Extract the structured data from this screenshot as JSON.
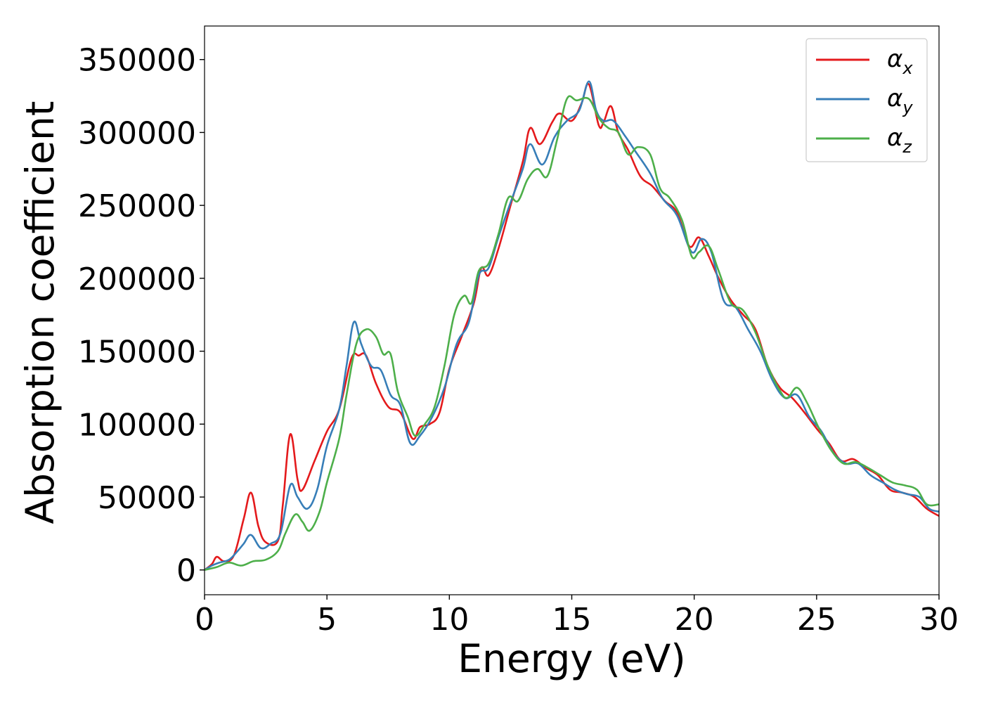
{
  "chart_data": {
    "type": "line",
    "title": "",
    "xlabel": "Energy (eV)",
    "ylabel": "Absorption coefficient",
    "xlim": [
      0,
      30
    ],
    "ylim": [
      -17000,
      373000
    ],
    "xticks": [
      0,
      5,
      10,
      15,
      20,
      25,
      30
    ],
    "yticks": [
      0,
      50000,
      100000,
      150000,
      200000,
      250000,
      300000,
      350000
    ],
    "xtick_labels": [
      "0",
      "5",
      "10",
      "15",
      "20",
      "25",
      "30"
    ],
    "ytick_labels": [
      "0",
      "50000",
      "100000",
      "150000",
      "200000",
      "250000",
      "300000",
      "350000"
    ],
    "grid": false,
    "legend_position": "top-right",
    "series": [
      {
        "name": "αx",
        "label_base": "α",
        "label_sub": "x",
        "color": "#e41a1c",
        "points": [
          [
            0,
            0
          ],
          [
            0.3,
            4000
          ],
          [
            0.5,
            9000
          ],
          [
            0.8,
            6000
          ],
          [
            1.2,
            10000
          ],
          [
            1.6,
            35000
          ],
          [
            1.9,
            53000
          ],
          [
            2.2,
            30000
          ],
          [
            2.5,
            19000
          ],
          [
            3.0,
            20000
          ],
          [
            3.2,
            45000
          ],
          [
            3.5,
            93000
          ],
          [
            3.8,
            62000
          ],
          [
            4.0,
            55000
          ],
          [
            4.5,
            75000
          ],
          [
            5.0,
            95000
          ],
          [
            5.5,
            110000
          ],
          [
            6.0,
            145000
          ],
          [
            6.3,
            147000
          ],
          [
            6.6,
            147000
          ],
          [
            7.0,
            128000
          ],
          [
            7.5,
            112000
          ],
          [
            8.0,
            108000
          ],
          [
            8.5,
            90000
          ],
          [
            8.8,
            98000
          ],
          [
            9.2,
            100000
          ],
          [
            9.6,
            108000
          ],
          [
            10.0,
            138000
          ],
          [
            10.5,
            160000
          ],
          [
            11.0,
            183000
          ],
          [
            11.3,
            207000
          ],
          [
            11.6,
            202000
          ],
          [
            12.0,
            220000
          ],
          [
            12.5,
            250000
          ],
          [
            13.0,
            280000
          ],
          [
            13.3,
            303000
          ],
          [
            13.7,
            292000
          ],
          [
            14.2,
            307000
          ],
          [
            14.5,
            313000
          ],
          [
            15.0,
            308000
          ],
          [
            15.4,
            320000
          ],
          [
            15.7,
            333000
          ],
          [
            16.1,
            305000
          ],
          [
            16.3,
            307000
          ],
          [
            16.6,
            318000
          ],
          [
            16.9,
            300000
          ],
          [
            17.3,
            288000
          ],
          [
            17.8,
            270000
          ],
          [
            18.3,
            263000
          ],
          [
            18.8,
            253000
          ],
          [
            19.3,
            245000
          ],
          [
            19.8,
            222000
          ],
          [
            20.2,
            228000
          ],
          [
            20.6,
            215000
          ],
          [
            21.0,
            200000
          ],
          [
            21.5,
            185000
          ],
          [
            22.0,
            175000
          ],
          [
            22.5,
            165000
          ],
          [
            23.0,
            140000
          ],
          [
            23.5,
            125000
          ],
          [
            24.0,
            118000
          ],
          [
            24.5,
            108000
          ],
          [
            25.0,
            97000
          ],
          [
            25.5,
            87000
          ],
          [
            26.0,
            75000
          ],
          [
            26.5,
            76000
          ],
          [
            27.0,
            70000
          ],
          [
            27.5,
            65000
          ],
          [
            28.0,
            55000
          ],
          [
            28.5,
            53000
          ],
          [
            29.0,
            50000
          ],
          [
            29.5,
            42000
          ],
          [
            30.0,
            37000
          ]
        ]
      },
      {
        "name": "αy",
        "label_base": "α",
        "label_sub": "y",
        "color": "#377eb8",
        "points": [
          [
            0,
            0
          ],
          [
            0.3,
            3000
          ],
          [
            0.6,
            5000
          ],
          [
            1.0,
            7000
          ],
          [
            1.3,
            12000
          ],
          [
            1.6,
            18000
          ],
          [
            1.9,
            24000
          ],
          [
            2.3,
            15000
          ],
          [
            2.7,
            18000
          ],
          [
            3.1,
            25000
          ],
          [
            3.5,
            58000
          ],
          [
            3.8,
            50000
          ],
          [
            4.2,
            42000
          ],
          [
            4.6,
            55000
          ],
          [
            5.0,
            85000
          ],
          [
            5.5,
            110000
          ],
          [
            5.8,
            140000
          ],
          [
            6.1,
            170000
          ],
          [
            6.4,
            155000
          ],
          [
            6.8,
            140000
          ],
          [
            7.2,
            137000
          ],
          [
            7.6,
            120000
          ],
          [
            8.0,
            113000
          ],
          [
            8.4,
            87000
          ],
          [
            8.8,
            92000
          ],
          [
            9.3,
            105000
          ],
          [
            9.8,
            125000
          ],
          [
            10.3,
            155000
          ],
          [
            10.8,
            170000
          ],
          [
            11.2,
            202000
          ],
          [
            11.6,
            207000
          ],
          [
            12.0,
            228000
          ],
          [
            12.5,
            252000
          ],
          [
            13.0,
            275000
          ],
          [
            13.3,
            292000
          ],
          [
            13.8,
            278000
          ],
          [
            14.3,
            297000
          ],
          [
            14.8,
            308000
          ],
          [
            15.3,
            315000
          ],
          [
            15.7,
            335000
          ],
          [
            16.0,
            315000
          ],
          [
            16.3,
            308000
          ],
          [
            16.7,
            308000
          ],
          [
            17.2,
            297000
          ],
          [
            17.6,
            287000
          ],
          [
            18.2,
            272000
          ],
          [
            18.7,
            255000
          ],
          [
            19.3,
            243000
          ],
          [
            19.9,
            218000
          ],
          [
            20.3,
            227000
          ],
          [
            20.7,
            218000
          ],
          [
            21.2,
            185000
          ],
          [
            21.7,
            180000
          ],
          [
            22.2,
            165000
          ],
          [
            22.7,
            150000
          ],
          [
            23.2,
            130000
          ],
          [
            23.7,
            118000
          ],
          [
            24.2,
            120000
          ],
          [
            24.7,
            105000
          ],
          [
            25.2,
            95000
          ],
          [
            25.7,
            80000
          ],
          [
            26.2,
            73000
          ],
          [
            26.7,
            73000
          ],
          [
            27.2,
            65000
          ],
          [
            27.7,
            60000
          ],
          [
            28.2,
            55000
          ],
          [
            28.7,
            52000
          ],
          [
            29.2,
            50000
          ],
          [
            29.6,
            42000
          ],
          [
            30.0,
            40000
          ]
        ]
      },
      {
        "name": "αz",
        "label_base": "α",
        "label_sub": "z",
        "color": "#4daf4a",
        "points": [
          [
            0,
            0
          ],
          [
            0.5,
            2000
          ],
          [
            1.0,
            5000
          ],
          [
            1.5,
            3000
          ],
          [
            2.0,
            6000
          ],
          [
            2.5,
            7000
          ],
          [
            3.0,
            13000
          ],
          [
            3.3,
            25000
          ],
          [
            3.7,
            38000
          ],
          [
            4.0,
            33000
          ],
          [
            4.3,
            27000
          ],
          [
            4.7,
            40000
          ],
          [
            5.0,
            60000
          ],
          [
            5.5,
            90000
          ],
          [
            5.8,
            120000
          ],
          [
            6.2,
            155000
          ],
          [
            6.6,
            165000
          ],
          [
            7.0,
            160000
          ],
          [
            7.3,
            148000
          ],
          [
            7.6,
            148000
          ],
          [
            7.9,
            122000
          ],
          [
            8.3,
            105000
          ],
          [
            8.6,
            92000
          ],
          [
            9.0,
            100000
          ],
          [
            9.4,
            112000
          ],
          [
            9.8,
            140000
          ],
          [
            10.2,
            175000
          ],
          [
            10.6,
            188000
          ],
          [
            10.9,
            183000
          ],
          [
            11.2,
            205000
          ],
          [
            11.6,
            210000
          ],
          [
            12.0,
            230000
          ],
          [
            12.4,
            255000
          ],
          [
            12.8,
            253000
          ],
          [
            13.2,
            268000
          ],
          [
            13.6,
            275000
          ],
          [
            14.0,
            270000
          ],
          [
            14.4,
            295000
          ],
          [
            14.8,
            323000
          ],
          [
            15.2,
            322000
          ],
          [
            15.7,
            323000
          ],
          [
            16.1,
            310000
          ],
          [
            16.5,
            303000
          ],
          [
            16.9,
            300000
          ],
          [
            17.3,
            285000
          ],
          [
            17.7,
            290000
          ],
          [
            18.2,
            285000
          ],
          [
            18.6,
            262000
          ],
          [
            19.0,
            255000
          ],
          [
            19.5,
            240000
          ],
          [
            19.9,
            215000
          ],
          [
            20.2,
            218000
          ],
          [
            20.6,
            222000
          ],
          [
            21.0,
            205000
          ],
          [
            21.5,
            183000
          ],
          [
            22.0,
            178000
          ],
          [
            22.5,
            163000
          ],
          [
            23.0,
            140000
          ],
          [
            23.5,
            123000
          ],
          [
            23.8,
            118000
          ],
          [
            24.2,
            125000
          ],
          [
            24.6,
            115000
          ],
          [
            25.1,
            97000
          ],
          [
            25.6,
            82000
          ],
          [
            26.1,
            73000
          ],
          [
            26.6,
            74000
          ],
          [
            27.1,
            70000
          ],
          [
            27.6,
            65000
          ],
          [
            28.1,
            60000
          ],
          [
            28.6,
            58000
          ],
          [
            29.1,
            55000
          ],
          [
            29.5,
            45000
          ],
          [
            30.0,
            45000
          ]
        ]
      }
    ]
  }
}
